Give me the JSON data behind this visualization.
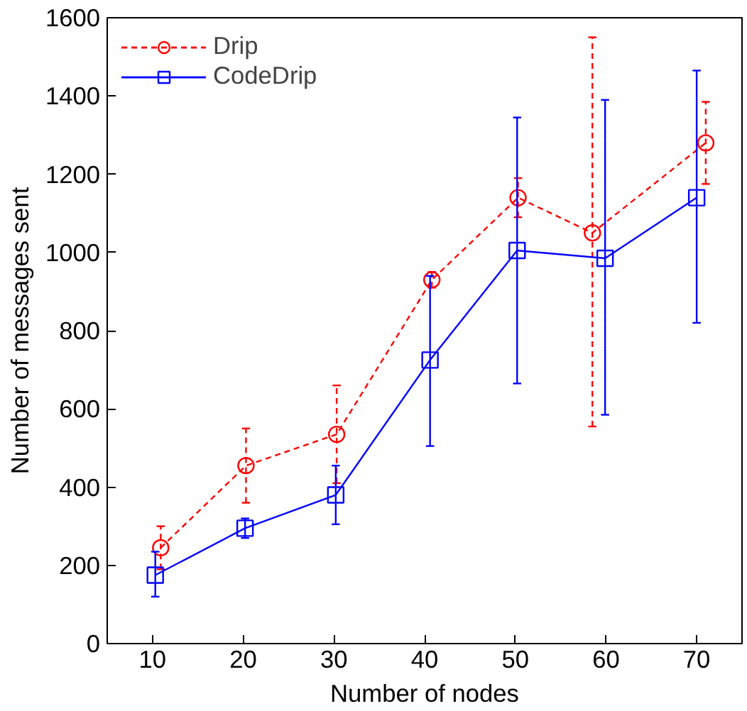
{
  "chart_data": {
    "type": "line",
    "xlabel": "Number of nodes",
    "ylabel": "Number of messages sent",
    "xlim": [
      5,
      75
    ],
    "xticks": [
      10,
      20,
      30,
      40,
      50,
      60,
      70
    ],
    "ylim": [
      0,
      1600
    ],
    "yticks": [
      0,
      200,
      400,
      600,
      800,
      1000,
      1200,
      1400,
      1600
    ],
    "grid": false,
    "legend": "top left",
    "series": [
      {
        "name": "Drip",
        "color": "#ff0000",
        "marker": "circle",
        "line_style": "dashed",
        "x": [
          10.9,
          20.3,
          30.3,
          40.8,
          50.3,
          58.5,
          71
        ],
        "values": [
          245,
          455,
          535,
          930,
          1140,
          1050,
          1280
        ],
        "errors": [
          [
            190,
            300
          ],
          [
            360,
            550
          ],
          [
            410,
            660
          ],
          [
            910,
            950
          ],
          [
            1090,
            1190
          ],
          [
            555,
            1550
          ],
          [
            1175,
            1385
          ]
        ]
      },
      {
        "name": "CodeDrip",
        "color": "#0000ff",
        "marker": "square",
        "line_style": "solid",
        "x": [
          10.3,
          20.2,
          30.2,
          40.6,
          50.2,
          59.9,
          70
        ],
        "values": [
          175,
          295,
          380,
          725,
          1005,
          985,
          1140
        ],
        "errors": [
          [
            120,
            235
          ],
          [
            270,
            320
          ],
          [
            305,
            455
          ],
          [
            505,
            940
          ],
          [
            665,
            1345
          ],
          [
            585,
            1390
          ],
          [
            820,
            1465
          ]
        ]
      }
    ]
  }
}
